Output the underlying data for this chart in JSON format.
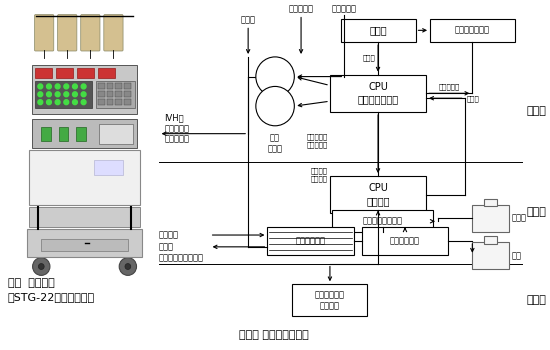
{
  "fig1_caption_line1": "図１  人工膵臓",
  "fig1_caption_line2": "（STG-22日機装社製）",
  "fig2_caption": "図２　 人工膵臓の構成",
  "bg_color": "#ffffff",
  "box_color": "#ffffff",
  "box_edge": "#000000",
  "line_color": "#000000",
  "text_color": "#000000",
  "section_labels": [
    "制御部",
    "測定部",
    "記録部"
  ]
}
